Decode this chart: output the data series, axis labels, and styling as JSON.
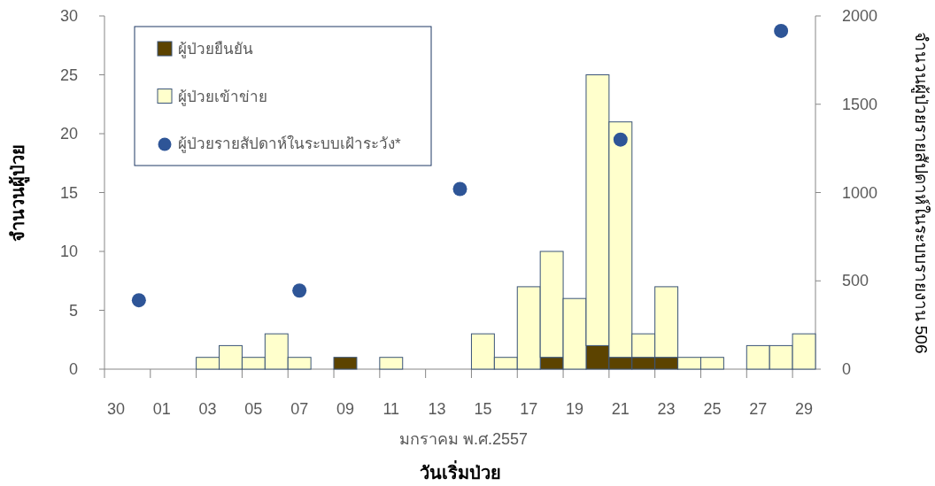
{
  "chart_data": {
    "type": "bar",
    "stacked": true,
    "ylabel": "จำนวนผู้ป่วย",
    "y2label": "จำนวนผู้ป่วยรายสัปดาห์ในระบบรายงาน 506",
    "xlabel": "วันเริ่มป่วย",
    "annotations": [
      "มกราคม พ.ศ.2557"
    ],
    "categories": [
      "30",
      null,
      "01",
      null,
      "03",
      null,
      "05",
      null,
      "07",
      null,
      "09",
      null,
      "11",
      null,
      "13",
      null,
      "15",
      null,
      "17",
      null,
      "19",
      null,
      "21",
      null,
      "23",
      null,
      "25",
      null,
      "27",
      null,
      "29"
    ],
    "series": [
      {
        "name": "ผู้ป่วยยืนยัน",
        "color": "#5c4300",
        "values": [
          0,
          0,
          0,
          0,
          0,
          0,
          0,
          0,
          0,
          0,
          1,
          0,
          0,
          0,
          0,
          0,
          0,
          0,
          0,
          1,
          0,
          2,
          1,
          1,
          1,
          0,
          0,
          0,
          0,
          0,
          0
        ]
      },
      {
        "name": "ผู้ป่วยเข้าข่าย",
        "color": "#ffffcc",
        "values": [
          0,
          0,
          0,
          0,
          1,
          2,
          1,
          3,
          1,
          0,
          0,
          0,
          1,
          0,
          0,
          0,
          3,
          1,
          7,
          9,
          6,
          23,
          20,
          2,
          6,
          1,
          1,
          0,
          2,
          2,
          3
        ]
      },
      {
        "name": "ผู้ป่วยรายสัปดาห์ในระบบเฝ้าระวัง*",
        "type": "scatter",
        "axis": "y2",
        "color": "#2e5597",
        "marker": "circle",
        "values": [
          null,
          390,
          null,
          null,
          null,
          null,
          null,
          null,
          445,
          null,
          null,
          null,
          null,
          null,
          null,
          1020,
          null,
          null,
          null,
          null,
          null,
          null,
          1300,
          null,
          null,
          null,
          null,
          null,
          null,
          1915,
          null
        ]
      }
    ],
    "ylim": [
      0,
      30
    ],
    "yticks": [
      0,
      5,
      10,
      15,
      20,
      25,
      30
    ],
    "y2lim": [
      0,
      2000
    ],
    "y2ticks": [
      0,
      500,
      1000,
      1500,
      2000
    ],
    "legend": "top left",
    "grid": false
  }
}
